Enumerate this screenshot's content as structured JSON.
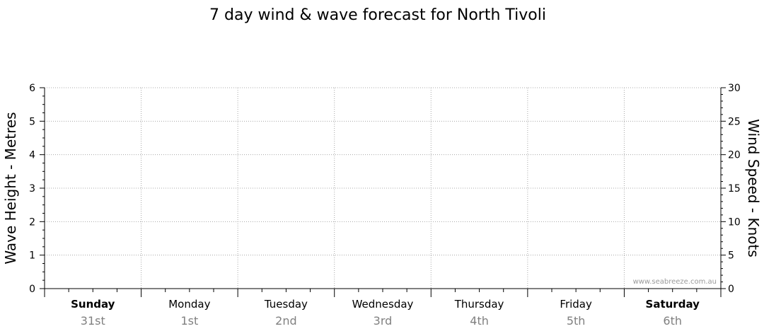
{
  "chart_data": {
    "type": "line",
    "title": "7 day wind & wave forecast for North Tivoli",
    "left_axis": {
      "label": "Wave Height - Metres",
      "range": [
        0,
        6
      ],
      "ticks": [
        0,
        1,
        2,
        3,
        4,
        5,
        6
      ]
    },
    "right_axis": {
      "label": "Wind Speed - Knots",
      "range": [
        0,
        30
      ],
      "ticks": [
        0,
        5,
        10,
        15,
        20,
        25,
        30
      ]
    },
    "days": [
      {
        "name": "Sunday",
        "date": "31st",
        "bold": true
      },
      {
        "name": "Monday",
        "date": "1st",
        "bold": false
      },
      {
        "name": "Tuesday",
        "date": "2nd",
        "bold": false
      },
      {
        "name": "Wednesday",
        "date": "3rd",
        "bold": false
      },
      {
        "name": "Thursday",
        "date": "4th",
        "bold": false
      },
      {
        "name": "Friday",
        "date": "5th",
        "bold": false
      },
      {
        "name": "Saturday",
        "date": "6th",
        "bold": true
      }
    ],
    "series": [],
    "grid": true,
    "watermark": "www.seabreeze.com.au"
  }
}
